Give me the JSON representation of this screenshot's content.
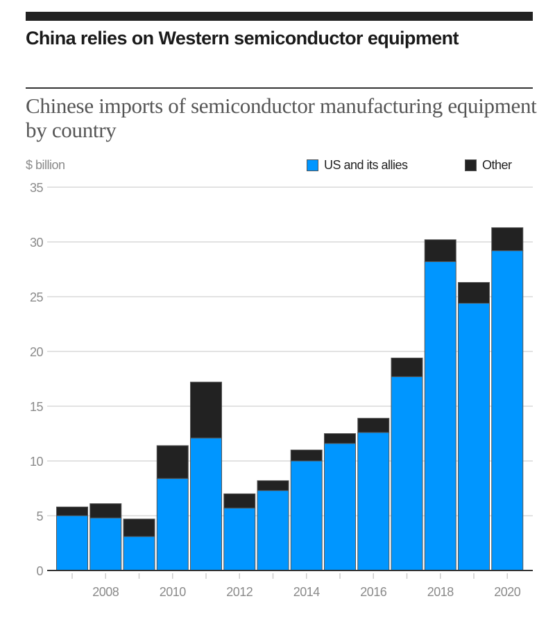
{
  "header": {
    "title": "China relies on Western semiconductor equipment",
    "subtitle": "Chinese imports of semiconductor manufacturing equipment by country"
  },
  "chart_data": {
    "type": "bar",
    "stacked": true,
    "title": "China relies on Western semiconductor equipment",
    "subtitle": "Chinese imports of semiconductor manufacturing equipment by country",
    "ylabel": "$ billion",
    "xlabel": "",
    "ylim": [
      0,
      35
    ],
    "yticks": [
      0,
      5,
      10,
      15,
      20,
      25,
      30,
      35
    ],
    "grid": true,
    "legend_position": "top-right",
    "categories": [
      "2007",
      "2008",
      "2009",
      "2010",
      "2011",
      "2012",
      "2013",
      "2014",
      "2015",
      "2016",
      "2017",
      "2018",
      "2019",
      "2020"
    ],
    "xtick_labels": [
      "2008",
      "2010",
      "2012",
      "2014",
      "2016",
      "2018",
      "2020"
    ],
    "series": [
      {
        "name": "US and its allies",
        "color": "#0096FF",
        "values": [
          5.0,
          4.8,
          3.1,
          8.4,
          12.1,
          5.7,
          7.3,
          10.0,
          11.6,
          12.6,
          17.7,
          28.2,
          24.4,
          29.2
        ]
      },
      {
        "name": "Other",
        "color": "#222222",
        "values": [
          0.8,
          1.3,
          1.6,
          3.0,
          5.1,
          1.3,
          0.9,
          1.0,
          0.9,
          1.3,
          1.7,
          2.0,
          1.9,
          2.1
        ]
      }
    ]
  }
}
